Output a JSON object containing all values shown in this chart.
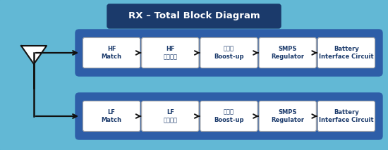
{
  "title": "RX – Total Block Diagram",
  "title_bg": "#1b3a6b",
  "title_fg": "#ffffff",
  "outer_bg": "#62b8d5",
  "outer_border": "#5aaac5",
  "row_bg": "#2e5ea8",
  "box_bg": "#ffffff",
  "box_border": "#aaaaaa",
  "box_text_color": "#1b3a6b",
  "arrow_color": "#111111",
  "antenna_color": "#111111",
  "hf_row": [
    {
      "label": "HF\nMatch"
    },
    {
      "label": "HF\n정류회로"
    },
    {
      "label": "에너지\nBoost-up"
    },
    {
      "label": "SMPS\nRegulator"
    },
    {
      "label": "Battery\nInterface Circuit"
    }
  ],
  "lf_row": [
    {
      "label": "LF\nMatch"
    },
    {
      "label": "LF\n정류회로"
    },
    {
      "label": "에너지\nBoost-up"
    },
    {
      "label": "SMPS\nRegulator"
    },
    {
      "label": "Battery\nInterface Circuit"
    }
  ]
}
